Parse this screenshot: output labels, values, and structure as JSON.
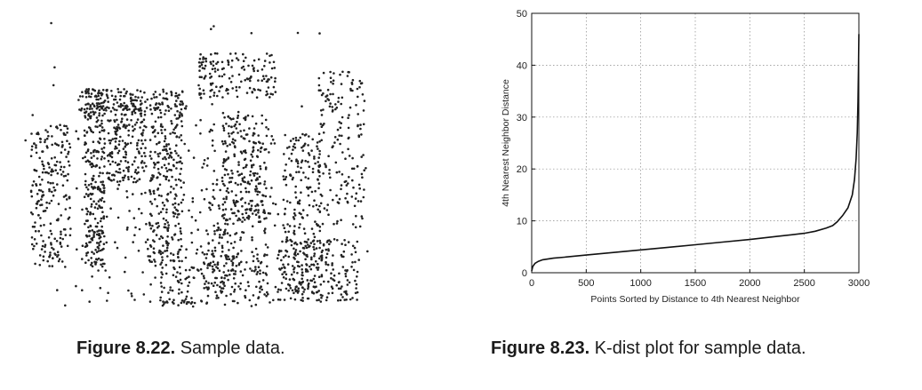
{
  "figure_left": {
    "number": "Figure 8.22.",
    "caption": "Sample data."
  },
  "figure_right": {
    "number": "Figure 8.23.",
    "caption": "K-dist plot for sample data."
  },
  "chart_data": [
    {
      "type": "scatter",
      "title": "",
      "point_count": 3000,
      "grid": false,
      "axes_shown": false,
      "point_color": "#222222"
    },
    {
      "type": "line",
      "title": "",
      "xlabel": "Points Sorted by Distance to 4th Nearest Neighbor",
      "ylabel": "4th Nearest Neighbor Distance",
      "xlim": [
        0,
        3000
      ],
      "ylim": [
        0,
        50
      ],
      "xticks": [
        "0",
        "500",
        "1000",
        "1500",
        "2000",
        "2500",
        "3000"
      ],
      "yticks": [
        "0",
        "10",
        "20",
        "30",
        "40",
        "50"
      ],
      "grid": true,
      "series": [
        {
          "color": "#111111",
          "x": [
            0,
            10,
            30,
            60,
            100,
            200,
            300,
            500,
            750,
            1000,
            1250,
            1500,
            1750,
            2000,
            2250,
            2500,
            2600,
            2700,
            2760,
            2800,
            2850,
            2900,
            2940,
            2960,
            2975,
            2985,
            2992,
            2997,
            3000
          ],
          "y": [
            0.3,
            1.2,
            1.8,
            2.2,
            2.5,
            2.8,
            3.0,
            3.4,
            3.9,
            4.4,
            4.9,
            5.4,
            5.9,
            6.4,
            7.0,
            7.6,
            8.0,
            8.6,
            9.1,
            9.8,
            11.0,
            12.5,
            15.0,
            18.0,
            22.0,
            27.0,
            33.0,
            40.0,
            46.0
          ]
        }
      ]
    }
  ]
}
